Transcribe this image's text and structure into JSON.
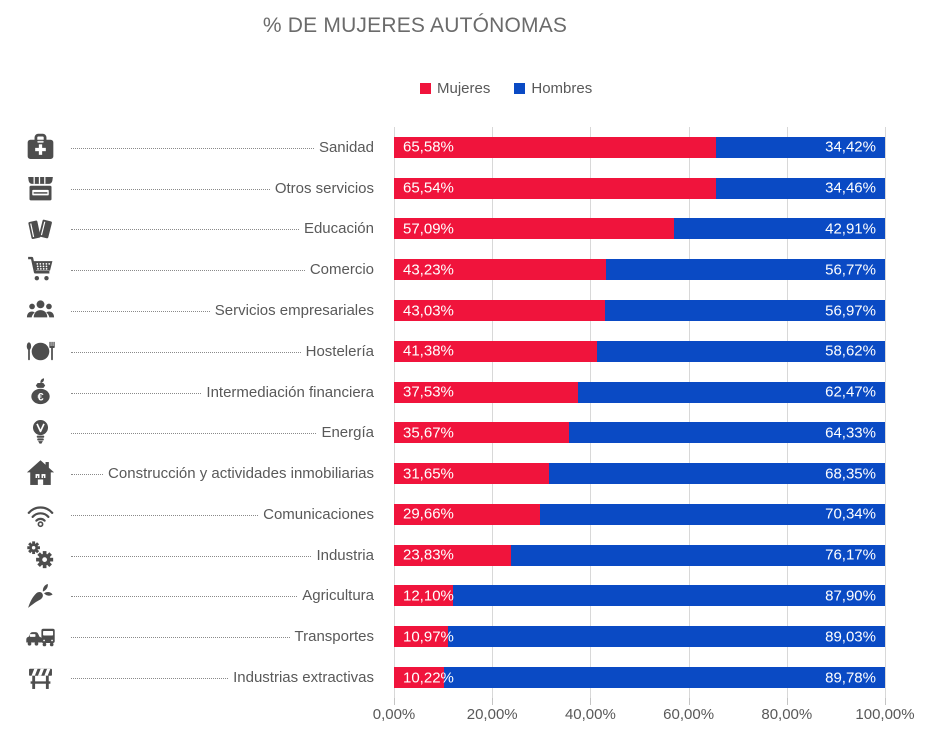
{
  "title": "% DE MUJERES AUTÓNOMAS",
  "colors": {
    "mujeres": "#f0143c",
    "hombres": "#0a4ac4",
    "grid": "#d8d8d8",
    "text": "#595959",
    "title_text": "#6b6b6b",
    "icon": "#4d4d4d",
    "value_text": "#ffffff"
  },
  "chart_data": {
    "type": "bar",
    "orientation": "horizontal",
    "stacked": true,
    "title": "% DE MUJERES AUTÓNOMAS",
    "legend": {
      "position": "top",
      "entries": [
        {
          "name": "Mujeres",
          "color": "#f0143c"
        },
        {
          "name": "Hombres",
          "color": "#0a4ac4"
        }
      ]
    },
    "x_axis": {
      "range": [
        0,
        100
      ],
      "ticks": [
        "0,00%",
        "20,00%",
        "40,00%",
        "60,00%",
        "80,00%",
        "100,00%"
      ],
      "grid": true
    },
    "categories": [
      "Sanidad",
      "Otros servicios",
      "Educación",
      "Comercio",
      "Servicios empresariales",
      "Hostelería",
      "Intermediación financiera",
      "Energía",
      "Construcción y actividades inmobiliarias",
      "Comunicaciones",
      "Industria",
      "Agricultura",
      "Transportes",
      "Industrias extractivas"
    ],
    "category_icons": [
      "medical-bag",
      "storefront",
      "books",
      "shopping-cart",
      "people-group",
      "restaurant",
      "money-bag",
      "light-bulb",
      "house",
      "wifi",
      "gears",
      "carrot",
      "vehicles",
      "barrier"
    ],
    "series": [
      {
        "name": "Mujeres",
        "color": "#f0143c",
        "values": [
          65.58,
          65.54,
          57.09,
          43.23,
          43.03,
          41.38,
          37.53,
          35.67,
          31.65,
          29.66,
          23.83,
          12.1,
          10.97,
          10.22
        ],
        "labels": [
          "65,58%",
          "65,54%",
          "57,09%",
          "43,23%",
          "43,03%",
          "41,38%",
          "37,53%",
          "35,67%",
          "31,65%",
          "29,66%",
          "23,83%",
          "12,10%",
          "10,97%",
          "10,22%"
        ]
      },
      {
        "name": "Hombres",
        "color": "#0a4ac4",
        "values": [
          34.42,
          34.46,
          42.91,
          56.77,
          56.97,
          58.62,
          62.47,
          64.33,
          68.35,
          70.34,
          76.17,
          87.9,
          89.03,
          89.78
        ],
        "labels": [
          "34,42%",
          "34,46%",
          "42,91%",
          "56,77%",
          "56,97%",
          "58,62%",
          "62,47%",
          "64,33%",
          "68,35%",
          "70,34%",
          "76,17%",
          "87,90%",
          "89,03%",
          "89,78%"
        ]
      }
    ]
  }
}
